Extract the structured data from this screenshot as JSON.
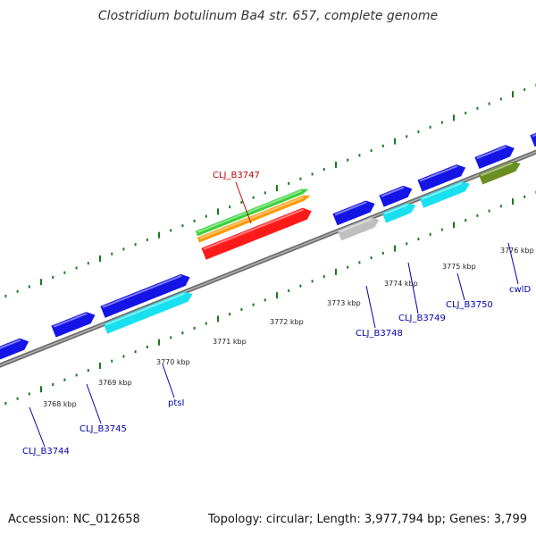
{
  "title": "Clostridium botulinum Ba4 str. 657, complete genome",
  "accession_text": "Accession: NC_012658",
  "topology_text": "Topology: circular; Length: 3,977,794 bp; Genes: 3,799",
  "colors": {
    "backbone": "#888888",
    "tick": "#1a7a1a",
    "gene_blue": "#1414e6",
    "gene_cyan": "#19e0ee",
    "gene_gray": "#bfbfbf",
    "gene_olive": "#6b8e23",
    "gene_red": "#ff1a1a",
    "gene_orange": "#ff9900",
    "gene_green": "#3ad23a",
    "label_blue": "#0000aa",
    "label_red": "#c00000"
  },
  "kbp_labels": [
    "3768 kbp",
    "3769 kbp",
    "3770 kbp",
    "3771 kbp",
    "3772 kbp",
    "3773 kbp",
    "3774 kbp",
    "3775 kbp",
    "3776 kbp"
  ],
  "gene_labels": [
    "CLJ_B3744",
    "CLJ_B3745",
    "ptsI",
    "CLJ_B3748",
    "CLJ_B3749",
    "CLJ_B3750",
    "cwlD",
    "CLJ_B3747"
  ]
}
